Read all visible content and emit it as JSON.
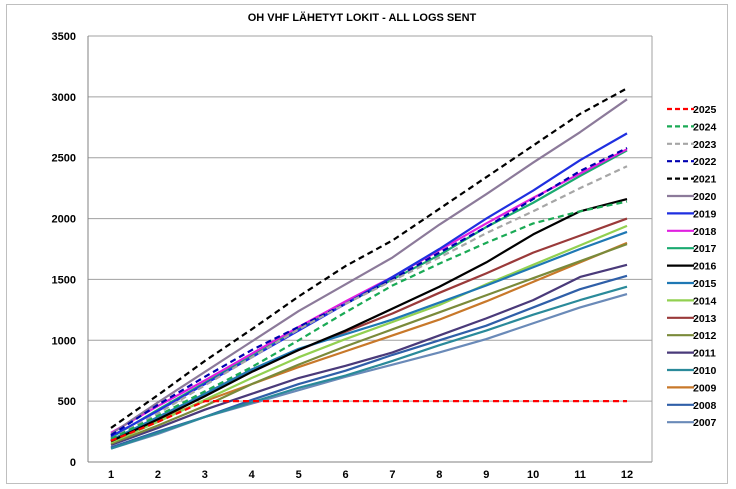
{
  "chart_data": {
    "type": "line",
    "title": "OH VHF  LÄHETYT LOKIT - ALL LOGS SENT",
    "xlabel": "",
    "ylabel": "",
    "x": [
      1,
      2,
      3,
      4,
      5,
      6,
      7,
      8,
      9,
      10,
      11,
      12
    ],
    "x_ticks": [
      "1",
      "2",
      "3",
      "4",
      "5",
      "6",
      "7",
      "8",
      "9",
      "10",
      "11",
      "12"
    ],
    "ylim": [
      0,
      3500
    ],
    "y_ticks": [
      "0",
      "500",
      "1000",
      "1500",
      "2000",
      "2500",
      "3000",
      "3500"
    ],
    "grid": "horizontal",
    "legend_position": "right",
    "series": [
      {
        "name": "2025",
        "color": "#ff0000",
        "dash": true,
        "values": [
          175,
          330,
          500,
          500,
          500,
          500,
          500,
          500,
          500,
          500,
          500,
          500
        ]
      },
      {
        "name": "2024",
        "color": "#1aaa55",
        "dash": true,
        "values": [
          190,
          380,
          580,
          780,
          1000,
          1230,
          1450,
          1630,
          1800,
          1960,
          2060,
          2140
        ]
      },
      {
        "name": "2023",
        "color": "#a6a6a6",
        "dash": true,
        "values": [
          190,
          400,
          630,
          860,
          1090,
          1300,
          1490,
          1680,
          1880,
          2060,
          2250,
          2430
        ]
      },
      {
        "name": "2022",
        "color": "#0000b0",
        "dash": true,
        "values": [
          220,
          470,
          700,
          920,
          1110,
          1300,
          1500,
          1720,
          1930,
          2160,
          2390,
          2580
        ]
      },
      {
        "name": "2021",
        "color": "#000000",
        "dash": true,
        "values": [
          280,
          550,
          830,
          1090,
          1360,
          1610,
          1820,
          2080,
          2340,
          2600,
          2860,
          3070
        ]
      },
      {
        "name": "2020",
        "color": "#8c7a9a",
        "dash": false,
        "values": [
          230,
          490,
          740,
          990,
          1240,
          1460,
          1680,
          1950,
          2200,
          2460,
          2710,
          2980
        ]
      },
      {
        "name": "2019",
        "color": "#1f2fe0",
        "dash": false,
        "values": [
          210,
          420,
          640,
          860,
          1080,
          1300,
          1520,
          1750,
          2000,
          2230,
          2480,
          2700
        ]
      },
      {
        "name": "2018",
        "color": "#e020e0",
        "dash": false,
        "values": [
          240,
          460,
          670,
          890,
          1110,
          1320,
          1520,
          1740,
          1960,
          2170,
          2370,
          2570
        ]
      },
      {
        "name": "2017",
        "color": "#1aaa70",
        "dash": false,
        "values": [
          200,
          430,
          650,
          880,
          1100,
          1300,
          1500,
          1700,
          1930,
          2130,
          2350,
          2560
        ]
      },
      {
        "name": "2016",
        "color": "#000000",
        "dash": false,
        "values": [
          170,
          350,
          540,
          740,
          920,
          1080,
          1260,
          1440,
          1640,
          1870,
          2060,
          2160
        ]
      },
      {
        "name": "2015",
        "color": "#1f78b4",
        "dash": false,
        "values": [
          180,
          370,
          560,
          760,
          930,
          1050,
          1170,
          1310,
          1450,
          1600,
          1750,
          1890
        ]
      },
      {
        "name": "2014",
        "color": "#92d050",
        "dash": false,
        "values": [
          160,
          330,
          510,
          690,
          860,
          1010,
          1150,
          1290,
          1460,
          1620,
          1780,
          1940
        ]
      },
      {
        "name": "2013",
        "color": "#9a3a3a",
        "dash": false,
        "values": [
          170,
          360,
          560,
          760,
          920,
          1070,
          1220,
          1390,
          1550,
          1720,
          1860,
          2000
        ]
      },
      {
        "name": "2012",
        "color": "#7a8a3a",
        "dash": false,
        "values": [
          150,
          300,
          460,
          640,
          800,
          950,
          1090,
          1230,
          1370,
          1510,
          1650,
          1790
        ]
      },
      {
        "name": "2011",
        "color": "#4a3a7a",
        "dash": false,
        "values": [
          140,
          280,
          430,
          560,
          690,
          790,
          900,
          1040,
          1180,
          1330,
          1520,
          1620
        ]
      },
      {
        "name": "2010",
        "color": "#2a8a9a",
        "dash": false,
        "values": [
          110,
          240,
          370,
          490,
          610,
          710,
          830,
          960,
          1080,
          1210,
          1330,
          1440
        ]
      },
      {
        "name": "2009",
        "color": "#c8782a",
        "dash": false,
        "values": [
          180,
          350,
          500,
          640,
          780,
          910,
          1040,
          1170,
          1320,
          1480,
          1640,
          1800
        ]
      },
      {
        "name": "2008",
        "color": "#2f5fa8",
        "dash": false,
        "values": [
          120,
          250,
          370,
          510,
          640,
          750,
          880,
          1000,
          1120,
          1270,
          1420,
          1530
        ]
      },
      {
        "name": "2007",
        "color": "#6a8ab8",
        "dash": false,
        "values": [
          110,
          230,
          370,
          480,
          590,
          700,
          800,
          900,
          1010,
          1140,
          1270,
          1380
        ]
      }
    ]
  }
}
